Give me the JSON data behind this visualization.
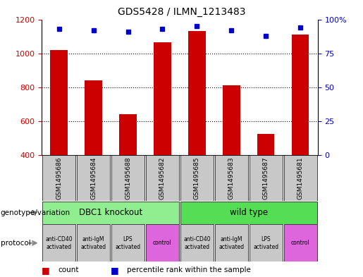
{
  "title": "GDS5428 / ILMN_1213483",
  "samples": [
    "GSM1495686",
    "GSM1495684",
    "GSM1495688",
    "GSM1495682",
    "GSM1495685",
    "GSM1495683",
    "GSM1495687",
    "GSM1495681"
  ],
  "count_values": [
    1020,
    840,
    640,
    1065,
    1130,
    810,
    525,
    1110
  ],
  "percentile_values": [
    93,
    92,
    91,
    93,
    95,
    92,
    88,
    94
  ],
  "ylim_left": [
    400,
    1200
  ],
  "yticks_left": [
    400,
    600,
    800,
    1000,
    1200
  ],
  "yticks_right": [
    0,
    25,
    50,
    75,
    100
  ],
  "bar_color": "#cc0000",
  "dot_color": "#0000cc",
  "bar_bottom": 400,
  "legend_count_label": "count",
  "legend_pct_label": "percentile rank within the sample",
  "genotype_label": "genotype/variation",
  "protocol_label": "protocol",
  "sample_box_color": "#c8c8c8",
  "left_ylabel_color": "#cc0000",
  "right_ylabel_color": "#0000cc",
  "genotype_groups": [
    {
      "label": "DBC1 knockout",
      "start": 0,
      "end": 3,
      "color": "#90EE90"
    },
    {
      "label": "wild type",
      "start": 4,
      "end": 7,
      "color": "#55dd55"
    }
  ],
  "protocol_labels": [
    "anti-CD40\nactivated",
    "anti-IgM\nactivated",
    "LPS\nactivated",
    "control",
    "anti-CD40\nactivated",
    "anti-IgM\nactivated",
    "LPS\nactivated",
    "control"
  ],
  "protocol_colors": [
    "#c8c8c8",
    "#c8c8c8",
    "#c8c8c8",
    "#dd66dd",
    "#c8c8c8",
    "#c8c8c8",
    "#c8c8c8",
    "#dd66dd"
  ]
}
